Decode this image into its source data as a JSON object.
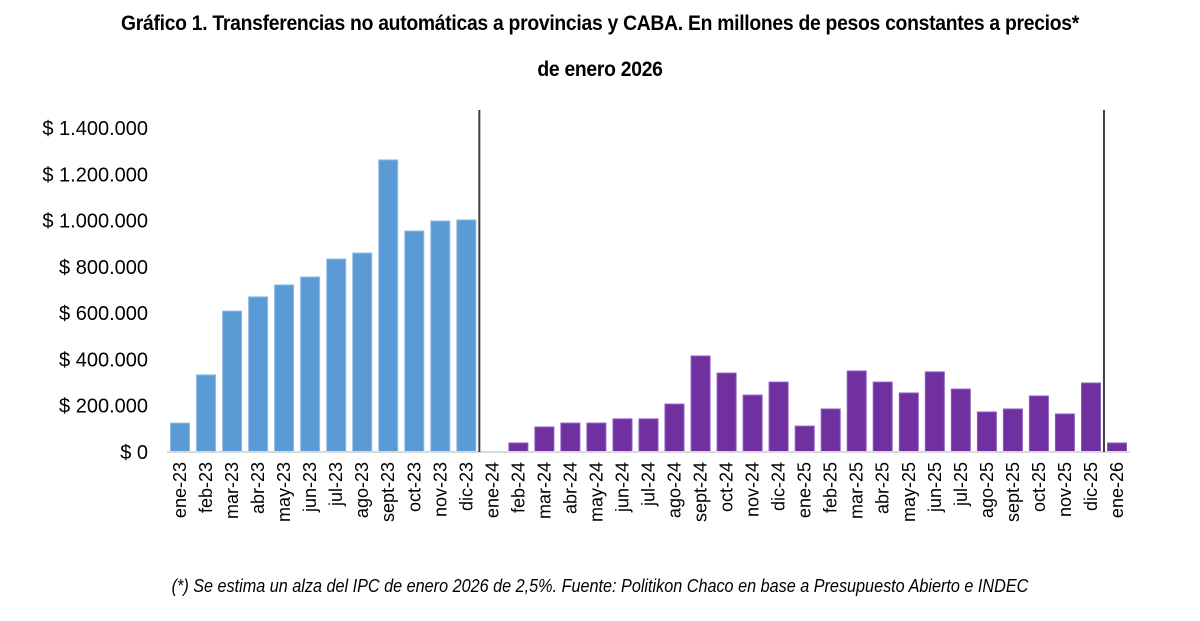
{
  "chart_data": {
    "type": "bar",
    "title": "Gráfico 1. Transferencias no automáticas a provincias y CABA. En millones de pesos constantes a precios*",
    "title_line2": "de enero 2026",
    "xlabel": "",
    "ylabel": "",
    "ylim": [
      0,
      1400000
    ],
    "yticks": [
      0,
      200000,
      400000,
      600000,
      800000,
      1000000,
      1200000,
      1400000
    ],
    "ytick_labels": [
      "$ 0",
      "$ 200.000",
      "$ 400.000",
      "$ 600.000",
      "$ 800.000",
      "$ 1.000.000",
      "$ 1.200.000",
      "$ 1.400.000"
    ],
    "grid": false,
    "legend": "none",
    "categories": [
      "ene-23",
      "feb-23",
      "mar-23",
      "abr-23",
      "may-23",
      "jun-23",
      "jul-23",
      "ago-23",
      "sept-23",
      "oct-23",
      "nov-23",
      "dic-23",
      "ene-24",
      "feb-24",
      "mar-24",
      "abr-24",
      "may-24",
      "jun-24",
      "jul-24",
      "ago-24",
      "sept-24",
      "oct-24",
      "nov-24",
      "dic-24",
      "ene-25",
      "feb-25",
      "mar-25",
      "abr-25",
      "may-25",
      "jun-25",
      "jul-25",
      "ago-25",
      "sept-25",
      "oct-25",
      "nov-25",
      "dic-25",
      "ene-26"
    ],
    "values": [
      125000,
      333000,
      609000,
      670000,
      722000,
      756000,
      834000,
      860000,
      1262000,
      955000,
      998000,
      1003000,
      0,
      39000,
      108000,
      125000,
      125000,
      143000,
      143000,
      207000,
      415000,
      341000,
      246000,
      302000,
      112000,
      186000,
      350000,
      302000,
      255000,
      346000,
      272000,
      173000,
      186000,
      242000,
      164000,
      298000,
      39000
    ],
    "series_colors": {
      "2023": "#5b9bd5",
      "2024-2026": "#7030a0"
    },
    "color_split_after_category": "dic-23",
    "vertical_markers_after": [
      "dic-23",
      "dic-25"
    ],
    "footnote": "(*) Se estima un alza del IPC de enero 2026 de 2,5%. Fuente: Politikon Chaco en base a Presupuesto Abierto e INDEC"
  }
}
